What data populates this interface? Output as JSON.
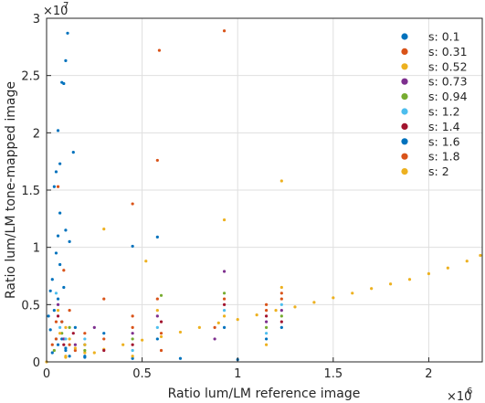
{
  "chart_data": {
    "type": "scatter",
    "title": "",
    "xlabel": "Ratio lum/LM reference image",
    "ylabel": "Ratio lum/LM tone-mapped image",
    "x_exponent_label": "×10",
    "x_exponent_power": "6",
    "y_exponent_label": "×10",
    "y_exponent_power": "7",
    "xlim": [
      0,
      2.28
    ],
    "ylim": [
      0,
      3.0
    ],
    "x_ticks": [
      "0",
      "0.5",
      "1",
      "1.5",
      "2"
    ],
    "y_ticks": [
      "0",
      "0.5",
      "1",
      "1.5",
      "2",
      "2.5",
      "3"
    ],
    "grid": true,
    "legend_position": "top-right",
    "series": [
      {
        "name": "s: 0.1",
        "color": "#0072BD",
        "points": [
          [
            0.11,
            2.87
          ],
          [
            0.1,
            2.63
          ],
          [
            0.09,
            2.43
          ],
          [
            0.08,
            2.44
          ],
          [
            0.06,
            2.02
          ],
          [
            0.07,
            1.73
          ],
          [
            0.05,
            1.66
          ],
          [
            0.04,
            1.53
          ],
          [
            0.07,
            1.3
          ],
          [
            0.06,
            1.1
          ],
          [
            0.05,
            0.95
          ],
          [
            0.07,
            0.85
          ],
          [
            0.03,
            0.72
          ],
          [
            0.06,
            0.55
          ],
          [
            0.04,
            0.45
          ],
          [
            0.08,
            0.35
          ],
          [
            0.02,
            0.28
          ],
          [
            0.05,
            0.2
          ],
          [
            0.1,
            0.12
          ],
          [
            0.03,
            0.08
          ],
          [
            0.12,
            0.05
          ],
          [
            0.2,
            0.04
          ],
          [
            0.45,
            0.03
          ],
          [
            0.7,
            0.03
          ],
          [
            1.0,
            0.02
          ],
          [
            0.14,
            1.83
          ],
          [
            0.3,
            0.25
          ],
          [
            0.2,
            0.15
          ],
          [
            0.1,
            1.15
          ],
          [
            0.12,
            1.05
          ],
          [
            0.09,
            0.65
          ],
          [
            0.02,
            0.62
          ],
          [
            0.01,
            0.4
          ],
          [
            0.15,
            0.3
          ],
          [
            0.08,
            0.2
          ]
        ]
      },
      {
        "name": "s: 0.31",
        "color": "#D95319",
        "points": [
          [
            0.06,
            1.53
          ],
          [
            0.45,
            1.38
          ],
          [
            0.58,
            1.76
          ],
          [
            0.59,
            2.72
          ],
          [
            0.93,
            2.89
          ],
          [
            0.58,
            0.55
          ],
          [
            0.3,
            0.55
          ],
          [
            0.09,
            0.8
          ],
          [
            0.12,
            0.45
          ],
          [
            0.2,
            0.25
          ],
          [
            0.05,
            0.35
          ],
          [
            0.88,
            0.3
          ],
          [
            1.15,
            0.45
          ],
          [
            1.23,
            0.6
          ],
          [
            0.45,
            0.4
          ],
          [
            0.03,
            0.15
          ],
          [
            0.15,
            0.1
          ],
          [
            0.6,
            0.1
          ]
        ]
      },
      {
        "name": "s: 0.52",
        "color": "#EDB120",
        "points": [
          [
            0.3,
            1.16
          ],
          [
            0.93,
            1.24
          ],
          [
            0.52,
            0.88
          ],
          [
            1.23,
            1.58
          ],
          [
            0.06,
            0.45
          ],
          [
            0.1,
            0.3
          ],
          [
            0.12,
            0.2
          ],
          [
            0.2,
            0.15
          ],
          [
            0.0,
            0.0
          ],
          [
            0.1,
            0.04
          ],
          [
            0.2,
            0.08
          ],
          [
            0.3,
            0.11
          ],
          [
            0.4,
            0.15
          ],
          [
            0.5,
            0.19
          ],
          [
            0.6,
            0.22
          ],
          [
            0.7,
            0.26
          ],
          [
            0.8,
            0.3
          ],
          [
            0.9,
            0.34
          ],
          [
            1.0,
            0.37
          ],
          [
            1.1,
            0.41
          ],
          [
            1.2,
            0.45
          ],
          [
            1.3,
            0.48
          ],
          [
            1.4,
            0.52
          ],
          [
            1.5,
            0.56
          ],
          [
            1.6,
            0.6
          ],
          [
            1.7,
            0.64
          ],
          [
            1.8,
            0.68
          ],
          [
            1.9,
            0.72
          ],
          [
            2.0,
            0.77
          ],
          [
            2.1,
            0.82
          ],
          [
            2.2,
            0.88
          ],
          [
            2.27,
            0.93
          ]
        ]
      },
      {
        "name": "s: 0.73",
        "color": "#7E2F8E",
        "points": [
          [
            0.93,
            0.79
          ],
          [
            0.58,
            0.4
          ],
          [
            0.45,
            0.25
          ],
          [
            0.25,
            0.3
          ],
          [
            0.09,
            0.2
          ],
          [
            0.06,
            0.5
          ],
          [
            0.15,
            0.15
          ],
          [
            1.15,
            0.35
          ],
          [
            1.23,
            0.45
          ],
          [
            0.88,
            0.2
          ]
        ]
      },
      {
        "name": "s: 0.94",
        "color": "#77AC30",
        "points": [
          [
            0.6,
            0.58
          ],
          [
            0.93,
            0.6
          ],
          [
            0.08,
            0.25
          ],
          [
            0.12,
            0.3
          ],
          [
            1.23,
            0.4
          ],
          [
            1.15,
            0.3
          ],
          [
            0.45,
            0.2
          ],
          [
            0.2,
            0.1
          ],
          [
            0.04,
            0.1
          ]
        ]
      },
      {
        "name": "s: 1.2",
        "color": "#4DBEEE",
        "points": [
          [
            0.05,
            0.6
          ],
          [
            0.07,
            0.3
          ],
          [
            0.1,
            0.2
          ],
          [
            0.58,
            0.3
          ],
          [
            0.93,
            0.45
          ],
          [
            1.23,
            0.5
          ],
          [
            1.15,
            0.25
          ],
          [
            0.45,
            0.1
          ],
          [
            0.2,
            0.2
          ]
        ]
      },
      {
        "name": "s: 1.4",
        "color": "#A2142F",
        "points": [
          [
            0.06,
            0.4
          ],
          [
            0.09,
            0.15
          ],
          [
            0.14,
            0.25
          ],
          [
            0.6,
            0.35
          ],
          [
            0.93,
            0.5
          ],
          [
            1.15,
            0.4
          ],
          [
            1.23,
            0.35
          ],
          [
            0.45,
            0.15
          ],
          [
            0.3,
            0.1
          ]
        ]
      },
      {
        "name": "s: 1.6",
        "color": "#0072BD",
        "points": [
          [
            0.45,
            1.01
          ],
          [
            0.58,
            1.09
          ],
          [
            0.06,
            0.15
          ],
          [
            0.1,
            0.1
          ],
          [
            0.58,
            0.2
          ],
          [
            0.93,
            0.3
          ],
          [
            1.23,
            0.3
          ],
          [
            1.15,
            0.2
          ],
          [
            0.2,
            0.05
          ]
        ]
      },
      {
        "name": "s: 1.8",
        "color": "#D95319",
        "points": [
          [
            0.05,
            0.2
          ],
          [
            0.08,
            0.35
          ],
          [
            0.12,
            0.15
          ],
          [
            0.6,
            0.25
          ],
          [
            0.93,
            0.55
          ],
          [
            1.23,
            0.55
          ],
          [
            1.15,
            0.5
          ],
          [
            0.45,
            0.3
          ],
          [
            0.3,
            0.2
          ]
        ]
      },
      {
        "name": "s: 2",
        "color": "#EDB120",
        "points": [
          [
            0.07,
            0.25
          ],
          [
            0.1,
            0.05
          ],
          [
            0.15,
            0.12
          ],
          [
            0.58,
            0.45
          ],
          [
            0.93,
            0.4
          ],
          [
            1.23,
            0.65
          ],
          [
            1.15,
            0.15
          ],
          [
            0.45,
            0.05
          ],
          [
            0.25,
            0.08
          ]
        ]
      }
    ]
  }
}
